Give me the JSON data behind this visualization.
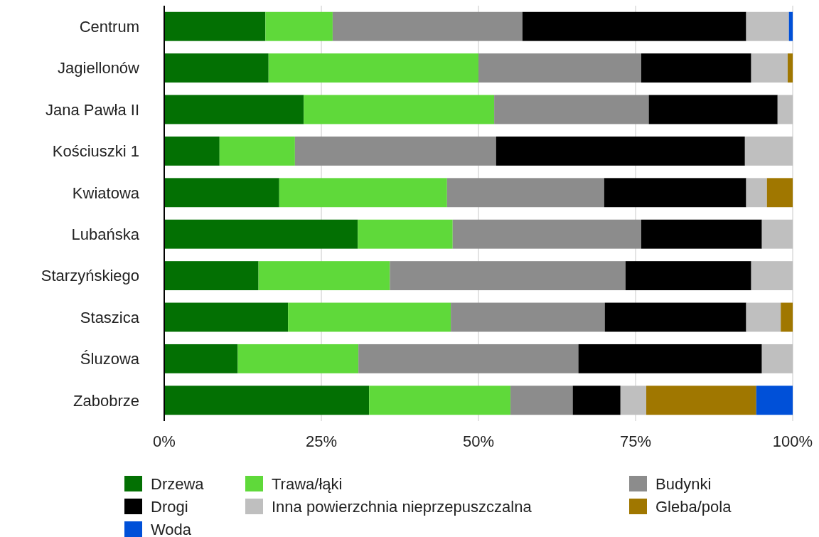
{
  "chart_data": {
    "type": "bar",
    "orientation": "horizontal",
    "stacked": true,
    "categories": [
      "Centrum",
      "Jagiellonów",
      "Jana Pawła II",
      "Kościuszki 1",
      "Kwiatowa",
      "Lubańska",
      "Starzyńskiego",
      "Staszica",
      "Śluzowa",
      "Zabobrze"
    ],
    "series": [
      {
        "name": "Drzewa",
        "color": "#037003",
        "values": [
          16.1,
          16.6,
          22.2,
          8.8,
          18.3,
          30.8,
          15.0,
          19.7,
          11.7,
          32.6
        ]
      },
      {
        "name": "Trawa/łąki",
        "color": "#5fd93a",
        "values": [
          10.7,
          33.4,
          30.3,
          12.0,
          26.7,
          15.1,
          20.9,
          25.9,
          19.2,
          22.5
        ]
      },
      {
        "name": "Budynki",
        "color": "#8c8c8c",
        "values": [
          30.2,
          25.9,
          24.6,
          32.0,
          25.0,
          30.0,
          37.5,
          24.5,
          35.0,
          9.9
        ]
      },
      {
        "name": "Drogi",
        "color": "#000000",
        "values": [
          35.6,
          17.5,
          20.5,
          39.6,
          22.6,
          19.2,
          20.0,
          22.5,
          29.2,
          7.6
        ]
      },
      {
        "name": "Inna powierzchnia nieprzepuszczalna",
        "color": "#bfbfbf",
        "values": [
          6.8,
          5.8,
          2.4,
          7.6,
          3.3,
          4.9,
          6.6,
          5.5,
          4.9,
          4.1
        ]
      },
      {
        "name": "Gleba/pola",
        "color": "#a07700",
        "values": [
          0,
          0.8,
          0,
          0,
          4.1,
          0,
          0,
          1.9,
          0,
          17.5
        ]
      },
      {
        "name": "Woda",
        "color": "#0050d8",
        "values": [
          0.6,
          0,
          0,
          0,
          0,
          0,
          0,
          0,
          0,
          5.8
        ]
      }
    ],
    "xlim": [
      0,
      100
    ],
    "xticks": [
      {
        "value": 0,
        "label": "0%"
      },
      {
        "value": 25,
        "label": "25%"
      },
      {
        "value": 50,
        "label": "50%"
      },
      {
        "value": 75,
        "label": "75%"
      },
      {
        "value": 100,
        "label": "100%"
      }
    ],
    "grid": "x",
    "legend": "bottom"
  }
}
